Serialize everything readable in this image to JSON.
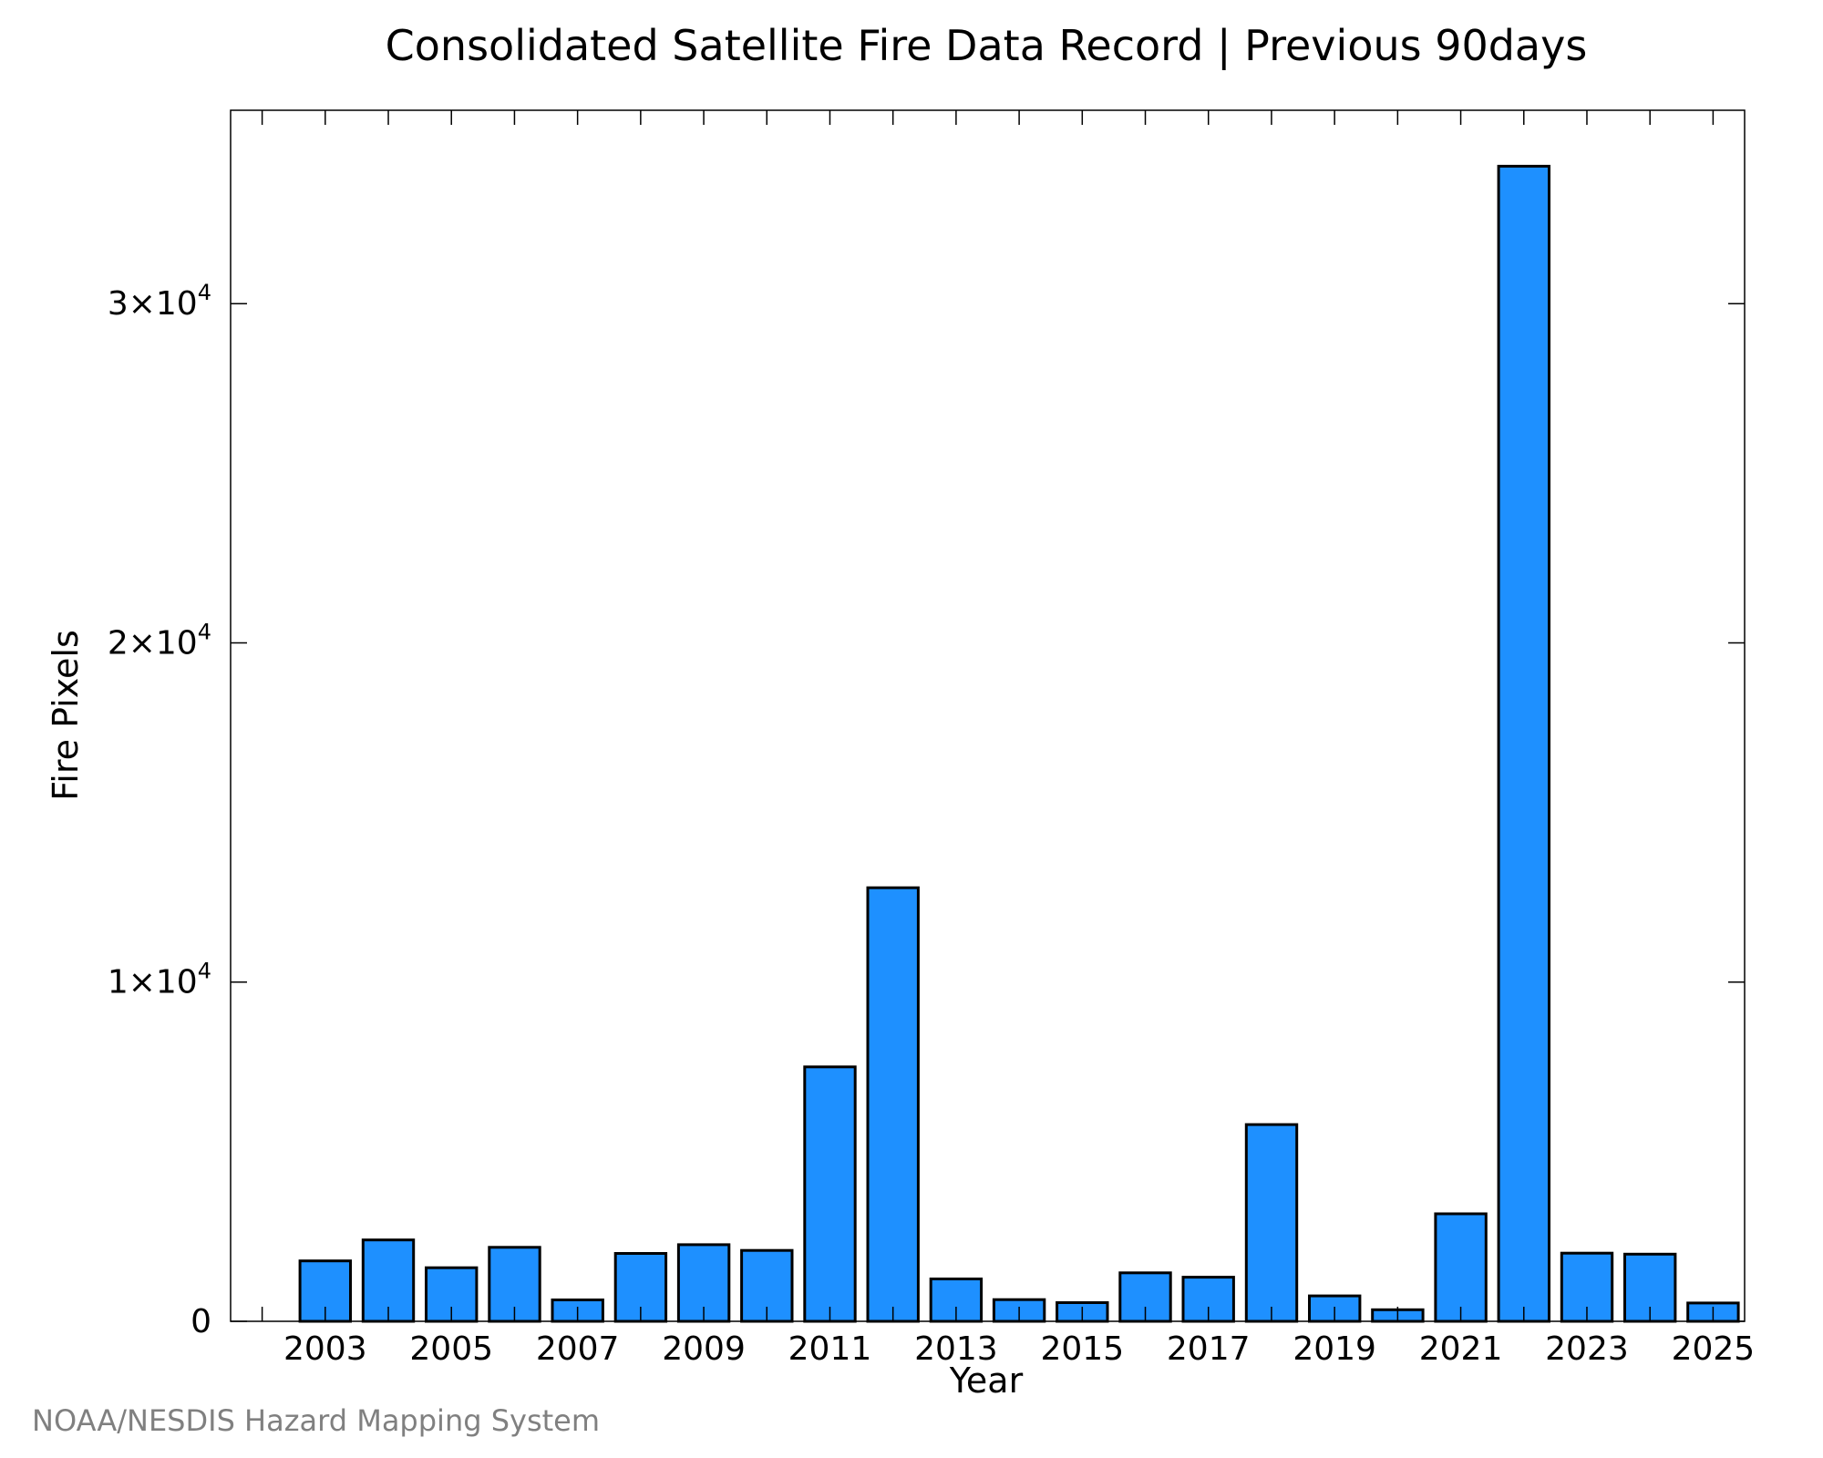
{
  "chart_data": {
    "type": "bar",
    "title": "Consolidated Satellite Fire Data Record | Previous 90days",
    "xlabel": "Year",
    "ylabel": "Fire Pixels",
    "categories": [
      "2003",
      "2004",
      "2005",
      "2006",
      "2007",
      "2008",
      "2009",
      "2010",
      "2011",
      "2012",
      "2013",
      "2014",
      "2015",
      "2016",
      "2017",
      "2018",
      "2019",
      "2020",
      "2021",
      "2022",
      "2023",
      "2024",
      "2025"
    ],
    "values": [
      1780,
      2400,
      1580,
      2180,
      630,
      2000,
      2260,
      2090,
      7500,
      12780,
      1250,
      640,
      550,
      1430,
      1300,
      5800,
      750,
      340,
      3170,
      34050,
      2010,
      1980,
      540
    ],
    "x_tick_labels": [
      "2003",
      "2005",
      "2007",
      "2009",
      "2011",
      "2013",
      "2015",
      "2017",
      "2019",
      "2021",
      "2023",
      "2025"
    ],
    "y_ticks": [
      {
        "value": 0,
        "label": "0",
        "exp": ""
      },
      {
        "value": 10000,
        "label": "1×10",
        "exp": "4"
      },
      {
        "value": 20000,
        "label": "2×10",
        "exp": "4"
      },
      {
        "value": 30000,
        "label": "3×10",
        "exp": "4"
      }
    ],
    "ylim": [
      0,
      35700
    ],
    "xlim": [
      2001.5,
      2025.5
    ],
    "grid": false,
    "bar_color": "#1e90ff",
    "edge_color": "#000000"
  },
  "credit": "NOAA/NESDIS Hazard Mapping System"
}
